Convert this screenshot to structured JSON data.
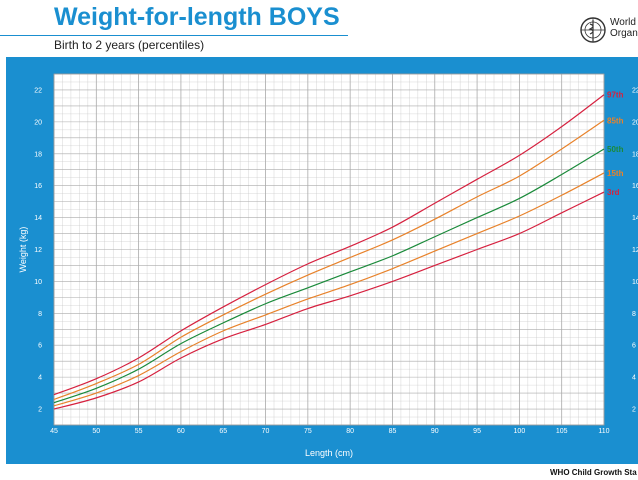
{
  "header": {
    "title": "Weight-for-length BOYS",
    "subtitle": "Birth to 2 years (percentiles)",
    "logo_line1": "World",
    "logo_line2": "Organ"
  },
  "footer": {
    "text": "WHO Child Growth Sta"
  },
  "colors": {
    "brand_blue": "#1a8fd0",
    "grid": "#c9c9c9",
    "p97": "#d6213f",
    "p85": "#e8822a",
    "p50": "#1a8a3a",
    "p15": "#e8822a",
    "p3": "#d6213f"
  },
  "chart_data": {
    "type": "line",
    "xlabel": "Length (cm)",
    "ylabel": "Weight (kg)",
    "xlim": [
      45,
      110
    ],
    "ylim": [
      1,
      23
    ],
    "x_ticks": [
      45,
      50,
      55,
      60,
      65,
      70,
      75,
      80,
      85,
      90,
      95,
      100,
      105,
      110
    ],
    "y_ticks": [
      2,
      4,
      6,
      8,
      10,
      12,
      14,
      16,
      18,
      20,
      22
    ],
    "y_ticks_right": [
      2,
      4,
      6,
      8,
      10,
      12,
      14,
      16,
      18,
      20,
      22
    ],
    "grid": true,
    "x": [
      45,
      50,
      55,
      60,
      65,
      70,
      75,
      80,
      85,
      90,
      95,
      100,
      105,
      110
    ],
    "series": [
      {
        "name": "97th",
        "color": "#d6213f",
        "values": [
          2.9,
          3.9,
          5.2,
          6.9,
          8.4,
          9.8,
          11.1,
          12.2,
          13.4,
          14.9,
          16.4,
          17.9,
          19.7,
          21.7
        ]
      },
      {
        "name": "85th",
        "color": "#e8822a",
        "values": [
          2.6,
          3.6,
          4.8,
          6.5,
          7.9,
          9.2,
          10.4,
          11.5,
          12.6,
          13.9,
          15.3,
          16.6,
          18.3,
          20.1
        ]
      },
      {
        "name": "50th",
        "color": "#1a8a3a",
        "values": [
          2.4,
          3.3,
          4.5,
          6.1,
          7.4,
          8.6,
          9.6,
          10.6,
          11.6,
          12.8,
          14.0,
          15.2,
          16.7,
          18.3
        ]
      },
      {
        "name": "15th",
        "color": "#e8822a",
        "values": [
          2.2,
          3.0,
          4.1,
          5.6,
          6.9,
          7.9,
          8.9,
          9.8,
          10.8,
          11.9,
          13.0,
          14.1,
          15.4,
          16.8
        ]
      },
      {
        "name": "3rd",
        "color": "#d6213f",
        "values": [
          2.0,
          2.7,
          3.7,
          5.2,
          6.4,
          7.3,
          8.3,
          9.1,
          10.0,
          11.0,
          12.0,
          13.0,
          14.3,
          15.6
        ]
      }
    ]
  }
}
